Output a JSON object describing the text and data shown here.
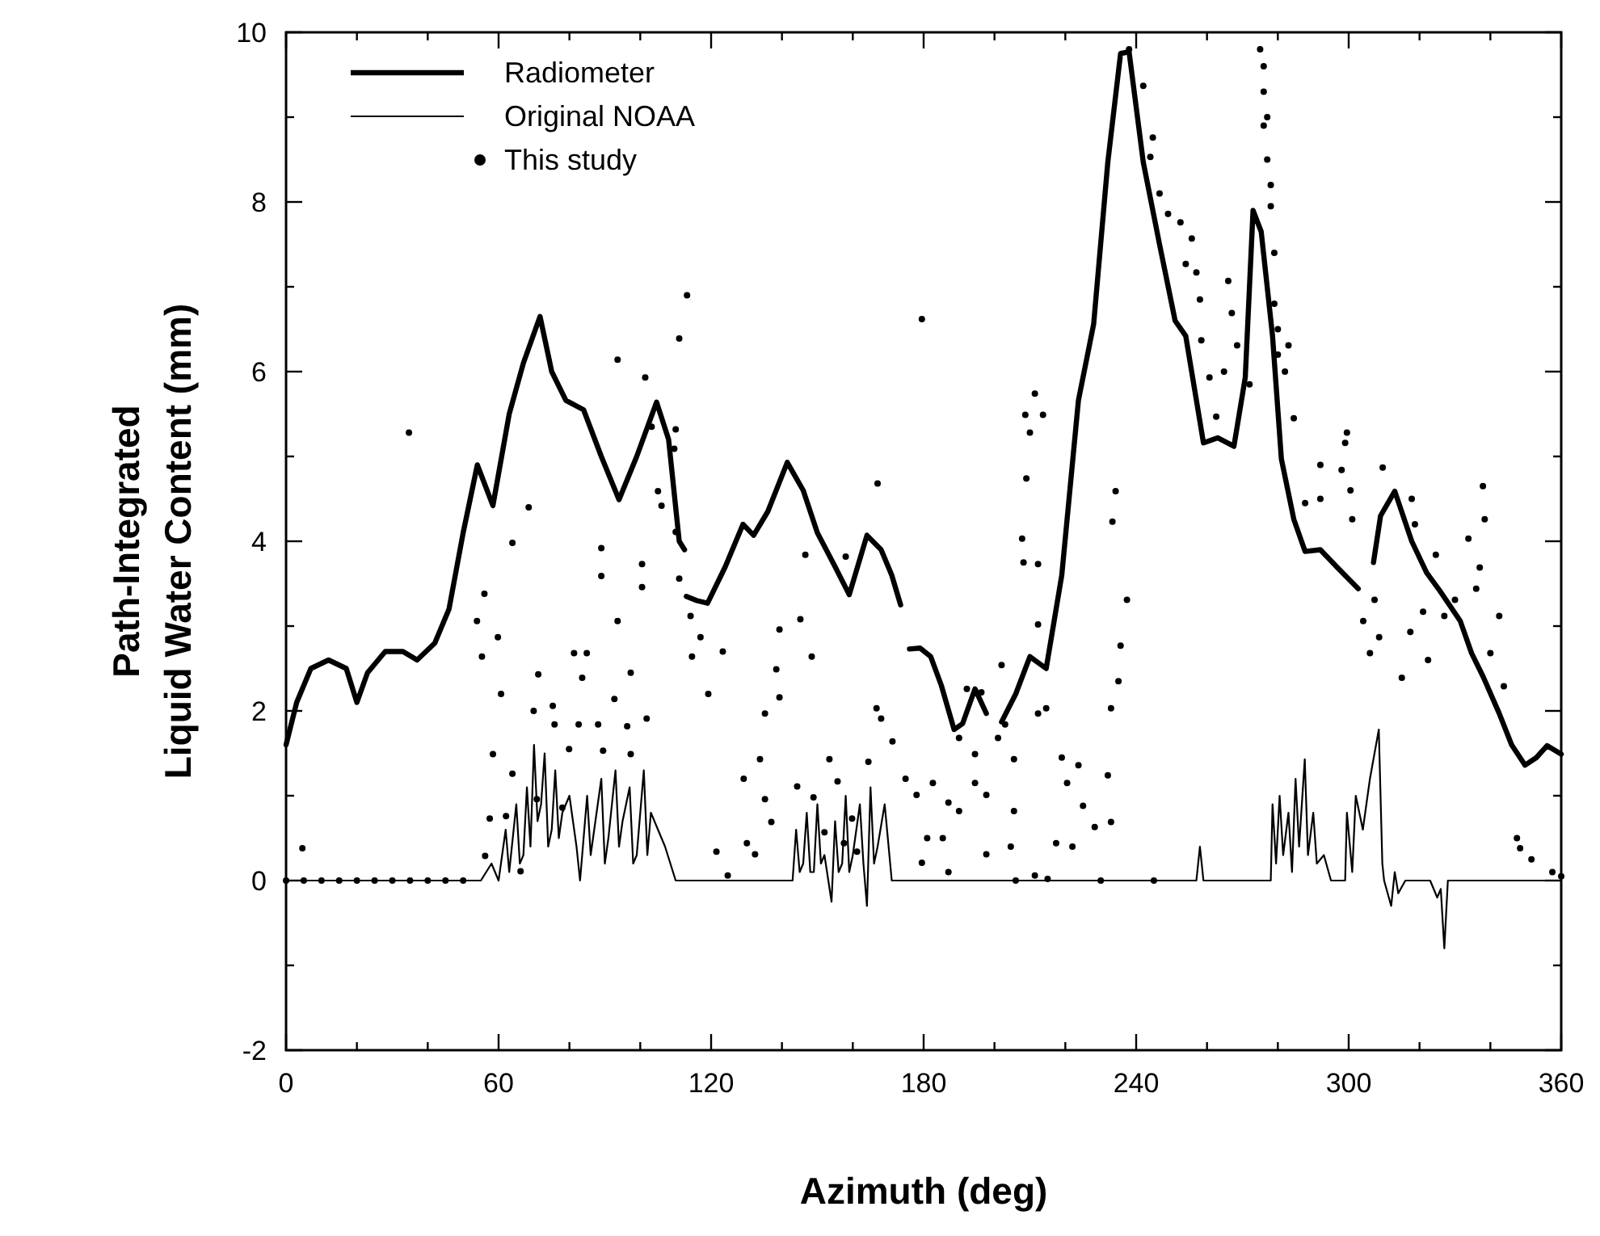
{
  "chart_data": {
    "type": "line",
    "xlabel": "Azimuth (deg)",
    "ylabel": "Path-Integrated\nLiquid Water Content (mm)",
    "xlim": [
      0,
      360
    ],
    "ylim": [
      -2,
      10
    ],
    "xticks": [
      0,
      {
        "value": 20,
        "label": null
      },
      {
        "value": 40,
        "label": null
      },
      60,
      {
        "value": 80,
        "label": null
      },
      {
        "value": 100,
        "label": null
      },
      120,
      {
        "value": 140,
        "label": null
      },
      {
        "value": 160,
        "label": null
      },
      180,
      {
        "value": 200,
        "label": null
      },
      {
        "value": 220,
        "label": null
      },
      240,
      {
        "value": 260,
        "label": null
      },
      {
        "value": 280,
        "label": null
      },
      300,
      {
        "value": 320,
        "label": null
      },
      {
        "value": 340,
        "label": null
      },
      360
    ],
    "yticks": [
      -2,
      {
        "value": -1,
        "label": null
      },
      0,
      {
        "value": 1,
        "label": null
      },
      2,
      {
        "value": 3,
        "label": null
      },
      4,
      {
        "value": 5,
        "label": null
      },
      6,
      {
        "value": 7,
        "label": null
      },
      8,
      {
        "value": 9,
        "label": null
      },
      10
    ],
    "grid": false,
    "legend": "top left",
    "series": [
      {
        "name": "Radiometer",
        "line_style": "solid",
        "color": "#000000",
        "x": [
          0,
          3,
          7,
          12,
          17,
          20,
          23,
          28,
          33,
          37,
          42,
          46,
          50,
          54,
          58.4,
          63,
          67,
          71.7,
          75,
          79,
          84,
          89,
          94,
          99,
          104.6,
          108,
          111,
          112.5,
          112.8,
          113,
          116,
          119,
          124,
          129,
          132,
          136,
          141.5,
          146,
          150,
          155,
          159,
          164,
          168,
          171,
          173.5,
          174.5,
          176,
          179,
          182,
          185,
          188.6,
          191,
          194.5,
          197.7,
          200,
          202,
          206,
          210,
          214.6,
          219,
          223.7,
          228,
          232,
          235.6,
          238,
          242,
          246.6,
          251,
          254,
          259,
          263,
          267.6,
          270.8,
          273,
          275.3,
          278.5,
          281,
          284.5,
          287.7,
          292,
          296.8,
          302.7,
          305,
          307,
          309,
          313,
          317.8,
          322,
          326,
          331.5,
          334.7,
          338,
          342.5,
          346,
          349.8,
          353,
          356,
          360
        ],
        "values": [
          1.6,
          2.1,
          2.5,
          2.6,
          2.5,
          2.1,
          2.45,
          2.7,
          2.7,
          2.6,
          2.8,
          3.2,
          4.1,
          4.9,
          4.42,
          5.5,
          6.1,
          6.65,
          6.0,
          5.66,
          5.55,
          5.0,
          4.49,
          5.0,
          5.64,
          5.2,
          4.0,
          3.9,
          null,
          3.35,
          3.3,
          3.27,
          3.7,
          4.2,
          4.07,
          4.35,
          4.93,
          4.6,
          4.1,
          3.7,
          3.37,
          4.07,
          3.9,
          3.6,
          3.25,
          null,
          2.73,
          2.74,
          2.64,
          2.3,
          1.78,
          1.85,
          2.26,
          1.97,
          null,
          1.87,
          2.2,
          2.64,
          2.5,
          3.6,
          5.66,
          6.56,
          8.47,
          9.75,
          9.77,
          8.47,
          7.5,
          6.6,
          6.42,
          5.16,
          5.22,
          5.12,
          5.93,
          7.9,
          7.65,
          6.42,
          4.97,
          4.26,
          3.88,
          3.9,
          3.69,
          3.44,
          null,
          3.75,
          4.3,
          4.59,
          4.0,
          3.63,
          3.4,
          3.06,
          2.68,
          2.4,
          1.97,
          1.6,
          1.36,
          1.45,
          1.59,
          1.49
        ]
      },
      {
        "name": "Original NOAA",
        "line_style": "solid",
        "color": "#000000",
        "x": [
          0,
          55,
          58,
          60,
          62,
          63,
          65,
          66,
          67,
          68,
          69,
          70,
          71,
          72,
          73,
          74,
          75,
          76,
          77,
          78,
          80,
          82,
          83,
          85,
          86,
          87,
          89,
          90,
          91,
          93,
          94,
          95,
          97,
          98,
          99,
          101,
          102,
          103,
          105,
          107,
          110,
          143,
          144,
          145,
          146,
          147,
          148,
          149,
          150,
          151,
          152,
          154,
          155,
          156,
          157,
          158,
          159,
          160,
          162,
          163,
          164,
          165,
          166,
          167,
          169,
          171,
          257,
          258,
          259,
          278,
          278.5,
          279.5,
          280.5,
          281.5,
          283,
          284,
          285,
          286,
          287.6,
          288.5,
          290,
          291,
          293,
          295,
          299,
          299.5,
          301,
          302,
          304,
          306,
          308.5,
          309.5,
          310,
          312,
          313,
          314,
          316,
          323,
          325,
          326,
          327,
          328,
          360
        ],
        "values": [
          0,
          0,
          0.2,
          0,
          0.6,
          0.1,
          0.9,
          0.2,
          0.3,
          1.1,
          0.4,
          1.6,
          0.7,
          0.9,
          1.5,
          0.4,
          0.6,
          1.3,
          0.5,
          0.8,
          1.0,
          0.4,
          0,
          1.0,
          0.3,
          0.6,
          1.2,
          0.2,
          0.5,
          1.3,
          0.4,
          0.7,
          1.1,
          0.2,
          0.3,
          1.3,
          0.3,
          0.8,
          0.6,
          0.4,
          0,
          0,
          0.6,
          0.1,
          0.2,
          0.8,
          0.1,
          0.1,
          0.9,
          0.2,
          0.3,
          -0.25,
          0.7,
          0.1,
          0.2,
          1.0,
          0.1,
          0.3,
          0.9,
          0.2,
          -0.3,
          1.1,
          0.2,
          0.4,
          0.9,
          0,
          0,
          0.4,
          0,
          0,
          0.9,
          0.2,
          1.0,
          0.3,
          0.8,
          0.1,
          1.2,
          0.4,
          1.43,
          0.3,
          0.8,
          0.2,
          0.3,
          0,
          0,
          0.8,
          0.1,
          1.0,
          0.6,
          1.2,
          1.78,
          0.2,
          0,
          -0.3,
          0.1,
          -0.15,
          0,
          0,
          -0.2,
          -0.1,
          -0.8,
          0,
          0
        ]
      },
      {
        "name": "This study",
        "type": "scatter",
        "marker": "circle",
        "color": "#000000",
        "x": [
          0,
          5,
          10,
          15,
          20,
          25,
          30,
          35,
          40,
          45,
          50,
          4.6,
          34.7,
          56,
          53.9,
          55.3,
          59.8,
          60.7,
          71.2,
          69.9,
          75.3,
          81.3,
          84.9,
          83.6,
          89,
          93.6,
          100.5,
          100.5,
          97.3,
          92.7,
          101.8,
          96.3,
          88.1,
          82.6,
          75.8,
          79.9,
          89.5,
          97.3,
          58.4,
          63.9,
          70.8,
          78,
          62.1,
          57.5,
          56.2,
          66.2,
          111,
          114.2,
          117,
          114.6,
          123.3,
          119.2,
          139.3,
          145.2,
          148.4,
          138.4,
          139.3,
          135.2,
          133.8,
          129.2,
          130.1,
          132.4,
          135.2,
          137,
          144.3,
          148.9,
          153.4,
          155.7,
          152,
          157.5,
          161.2,
          164.4,
          166.7,
          168,
          171.2,
          174.9,
          178,
          179.5,
          124.7,
          121.5,
          159.8,
          113.2,
          111,
          93.6,
          101.4,
          103.2,
          110,
          109.6,
          105,
          106,
          110,
          89,
          68.5,
          63.9,
          167,
          179.5,
          146.6,
          158,
          212.3,
          202,
          192.2,
          196.3,
          201,
          190,
          194.5,
          205.5,
          182.6,
          194.5,
          187,
          190,
          197.7,
          205.5,
          181,
          185.4,
          197.7,
          204.6,
          211.4,
          219,
          223.7,
          220.5,
          225,
          228.3,
          217.4,
          222,
          232,
          232.9,
          237.4,
          235.6,
          235,
          232.9,
          212.3,
          214.6,
          203,
          187,
          206,
          215,
          211.4,
          208.7,
          213.7,
          210,
          209,
          234.2,
          233.3,
          207.8,
          208.2,
          212.3,
          242,
          244.7,
          244,
          246.6,
          249,
          252.5,
          255.7,
          254,
          257,
          258,
          266,
          267,
          268.5,
          258.4,
          260.7,
          264.8,
          262.6,
          272,
          238,
          275,
          276,
          276,
          277,
          276,
          277,
          278,
          278,
          279,
          279,
          280,
          280,
          283,
          282,
          284.5,
          299.5,
          299,
          292,
          298,
          309.6,
          300.5,
          287.7,
          292,
          301,
          317.8,
          318.7,
          324.6,
          337.9,
          338.4,
          333.8,
          337,
          306,
          308.6,
          315,
          317.4,
          322.4,
          327,
          340,
          343.8,
          342.5,
          347.5,
          351.6,
          357.5,
          348.4,
          307.3,
          304.1,
          321,
          330,
          336,
          360,
          245,
          230
        ],
        "values": [
          0,
          0,
          0,
          0,
          0,
          0,
          0,
          0,
          0,
          0,
          0,
          0.38,
          5.28,
          3.38,
          3.06,
          2.64,
          2.87,
          2.2,
          2.43,
          2.0,
          2.06,
          2.68,
          2.68,
          2.39,
          3.59,
          3.06,
          3.73,
          3.46,
          2.45,
          2.14,
          1.91,
          1.82,
          1.84,
          1.84,
          1.84,
          1.55,
          1.53,
          1.49,
          1.49,
          1.26,
          0.96,
          0.86,
          0.76,
          0.73,
          0.29,
          0.11,
          3.56,
          3.12,
          2.87,
          2.64,
          2.7,
          2.2,
          2.96,
          3.08,
          2.64,
          2.49,
          2.16,
          1.97,
          1.43,
          1.2,
          0.44,
          0.31,
          0.96,
          0.69,
          1.11,
          0.98,
          1.43,
          1.17,
          0.57,
          0.44,
          0.34,
          1.4,
          2.03,
          1.91,
          1.64,
          1.2,
          1.01,
          0.21,
          0.06,
          0.34,
          0.73,
          6.9,
          6.39,
          6.14,
          5.93,
          5.35,
          5.32,
          5.09,
          4.59,
          4.42,
          4.11,
          3.92,
          4.4,
          3.98,
          4.68,
          6.62,
          3.84,
          3.82,
          3.02,
          2.54,
          2.26,
          2.22,
          1.68,
          1.68,
          1.49,
          1.43,
          1.15,
          1.15,
          0.92,
          0.82,
          1.01,
          0.82,
          0.5,
          0.5,
          0.31,
          0.4,
          0.06,
          1.45,
          1.36,
          1.15,
          0.88,
          0.63,
          0.44,
          0.4,
          1.24,
          0.69,
          3.31,
          2.77,
          2.35,
          2.03,
          1.97,
          2.03,
          1.84,
          0.1,
          0,
          0.02,
          5.74,
          5.49,
          5.49,
          5.28,
          4.74,
          4.59,
          4.23,
          4.03,
          3.75,
          3.73,
          9.37,
          8.76,
          8.53,
          8.1,
          7.86,
          7.76,
          7.57,
          7.27,
          7.17,
          6.85,
          7.07,
          6.69,
          6.31,
          6.37,
          5.93,
          6.0,
          5.47,
          5.85,
          9.8,
          9.8,
          9.6,
          9.3,
          9.0,
          8.9,
          8.5,
          8.2,
          7.95,
          7.4,
          6.8,
          6.5,
          6.2,
          6.31,
          6.0,
          5.45,
          5.28,
          5.16,
          4.9,
          4.84,
          4.87,
          4.6,
          4.45,
          4.5,
          4.26,
          4.5,
          4.2,
          3.84,
          4.65,
          4.26,
          4.03,
          3.69,
          2.68,
          2.87,
          2.39,
          2.93,
          2.6,
          3.12,
          2.68,
          2.29,
          3.12,
          0.5,
          0.25,
          0.1,
          0.38,
          3.31,
          3.06,
          3.17,
          3.31,
          3.44,
          0.05,
          0,
          0
        ]
      }
    ]
  }
}
